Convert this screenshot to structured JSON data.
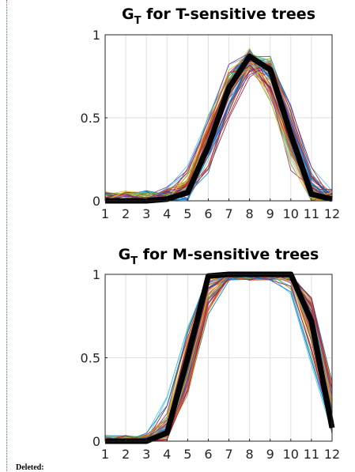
{
  "chart_data": [
    {
      "type": "line",
      "title_main": "G",
      "title_sub": "T",
      "title_rest": " for T-sensitive trees",
      "x": [
        1,
        2,
        3,
        4,
        5,
        6,
        7,
        8,
        9,
        10,
        11,
        12
      ],
      "x_tick_labels": [
        "1",
        "2",
        "3",
        "4",
        "5",
        "6",
        "7",
        "8",
        "9",
        "10",
        "11",
        "12"
      ],
      "ylim": [
        0,
        1
      ],
      "y_ticks": [
        0,
        0.5,
        1
      ],
      "y_tick_labels": [
        "0",
        "0.5",
        "1"
      ],
      "grid": true,
      "mean_series": {
        "values": [
          0,
          0,
          0,
          0.01,
          0.05,
          0.33,
          0.68,
          0.87,
          0.79,
          0.4,
          0.04,
          0.01
        ],
        "color": "#000000"
      },
      "individual_series_count": 60
    },
    {
      "type": "line",
      "title_main": "G",
      "title_sub": "T",
      "title_rest": " for M-sensitive trees",
      "x": [
        1,
        2,
        3,
        4,
        5,
        6,
        7,
        8,
        9,
        10,
        11,
        12
      ],
      "x_tick_labels": [
        "1",
        "2",
        "3",
        "4",
        "5",
        "6",
        "7",
        "8",
        "9",
        "10",
        "11",
        "12"
      ],
      "ylim": [
        0,
        1
      ],
      "y_ticks": [
        0,
        0.5,
        1
      ],
      "y_tick_labels": [
        "0",
        "0.5",
        "1"
      ],
      "grid": true,
      "mean_series": {
        "values": [
          0,
          0,
          0,
          0.05,
          0.5,
          0.99,
          1,
          1,
          1,
          1,
          0.72,
          0.08
        ],
        "color": "#000000"
      },
      "individual_series_count": 60
    }
  ],
  "margin_note": "Deleted:",
  "palette": [
    "#0072bd",
    "#d95319",
    "#edb120",
    "#7e2f8e",
    "#77ac30",
    "#4dbeee",
    "#a2142f"
  ]
}
